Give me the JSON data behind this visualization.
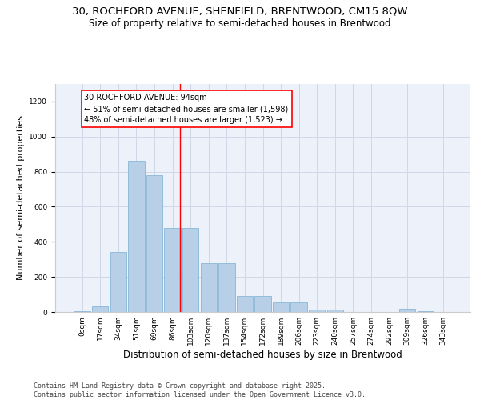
{
  "title_line1": "30, ROCHFORD AVENUE, SHENFIELD, BRENTWOOD, CM15 8QW",
  "title_line2": "Size of property relative to semi-detached houses in Brentwood",
  "xlabel": "Distribution of semi-detached houses by size in Brentwood",
  "ylabel": "Number of semi-detached properties",
  "categories": [
    "0sqm",
    "17sqm",
    "34sqm",
    "51sqm",
    "69sqm",
    "86sqm",
    "103sqm",
    "120sqm",
    "137sqm",
    "154sqm",
    "172sqm",
    "189sqm",
    "206sqm",
    "223sqm",
    "240sqm",
    "257sqm",
    "274sqm",
    "292sqm",
    "309sqm",
    "326sqm",
    "343sqm"
  ],
  "values": [
    5,
    30,
    340,
    860,
    780,
    480,
    480,
    280,
    280,
    90,
    90,
    55,
    55,
    15,
    15,
    0,
    0,
    0,
    20,
    5,
    0
  ],
  "bar_color": "#b8cfe8",
  "bar_edge_color": "#7aafd4",
  "vline_color": "red",
  "vline_x": 5.42,
  "annotation_title": "30 ROCHFORD AVENUE: 94sqm",
  "annotation_line2": "← 51% of semi-detached houses are smaller (1,598)",
  "annotation_line3": "48% of semi-detached houses are larger (1,523) →",
  "ylim": [
    0,
    1300
  ],
  "yticks": [
    0,
    200,
    400,
    600,
    800,
    1000,
    1200
  ],
  "grid_color": "#d0d8e8",
  "background_color": "#edf1f9",
  "footer_line1": "Contains HM Land Registry data © Crown copyright and database right 2025.",
  "footer_line2": "Contains public sector information licensed under the Open Government Licence v3.0.",
  "title_fontsize": 9.5,
  "subtitle_fontsize": 8.5,
  "tick_fontsize": 6.5,
  "ylabel_fontsize": 8,
  "xlabel_fontsize": 8.5,
  "annotation_fontsize": 7,
  "footer_fontsize": 6
}
